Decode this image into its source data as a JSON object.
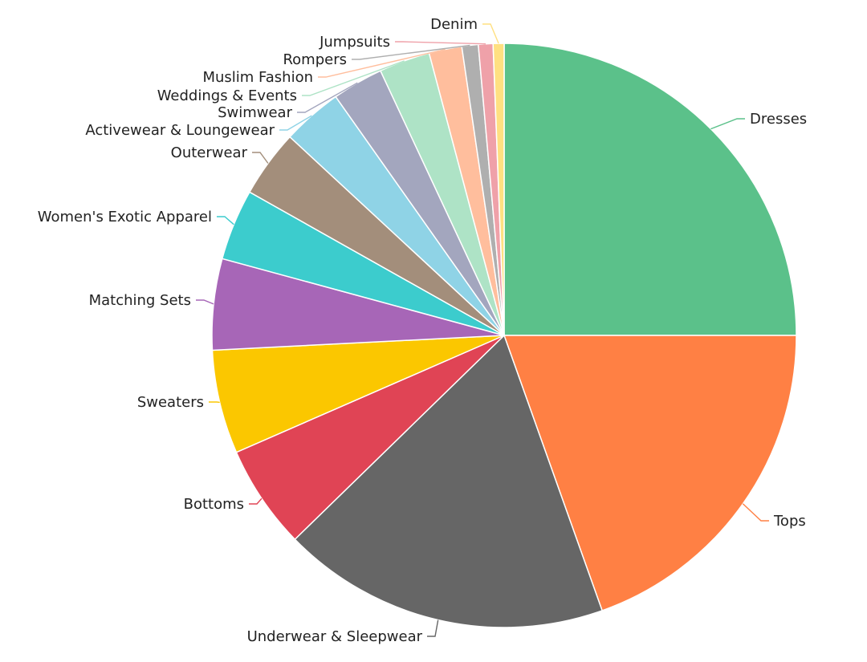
{
  "chart_data": {
    "type": "pie",
    "start_angle_deg": 0,
    "direction": "clockwise",
    "legend": "none",
    "slices": [
      {
        "label": "Dresses",
        "value": 24.8,
        "color": "#5BC18A"
      },
      {
        "label": "Tops",
        "value": 19.4,
        "color": "#FF8044"
      },
      {
        "label": "Underwear & Sleepwear",
        "value": 18.0,
        "color": "#666666"
      },
      {
        "label": "Bottoms",
        "value": 5.7,
        "color": "#E04455"
      },
      {
        "label": "Sweaters",
        "value": 5.7,
        "color": "#FBC700"
      },
      {
        "label": "Matching Sets",
        "value": 5.0,
        "color": "#A766B7"
      },
      {
        "label": "Women's Exotic Apparel",
        "value": 3.9,
        "color": "#3CCCCD"
      },
      {
        "label": "Outerwear",
        "value": 3.7,
        "color": "#A38E7B"
      },
      {
        "label": "Activewear & Loungewear",
        "value": 3.3,
        "color": "#8FD3E6"
      },
      {
        "label": "Swimwear",
        "value": 2.8,
        "color": "#A3A6BE"
      },
      {
        "label": "Weddings & Events",
        "value": 2.8,
        "color": "#AEE3C6"
      },
      {
        "label": "Muslim Fashion",
        "value": 1.8,
        "color": "#FFBE9D"
      },
      {
        "label": "Rompers",
        "value": 0.9,
        "color": "#AFAFAF"
      },
      {
        "label": "Jumpsuits",
        "value": 0.8,
        "color": "#EFA1A9"
      },
      {
        "label": "Denim",
        "value": 0.6,
        "color": "#FFE081"
      }
    ]
  }
}
